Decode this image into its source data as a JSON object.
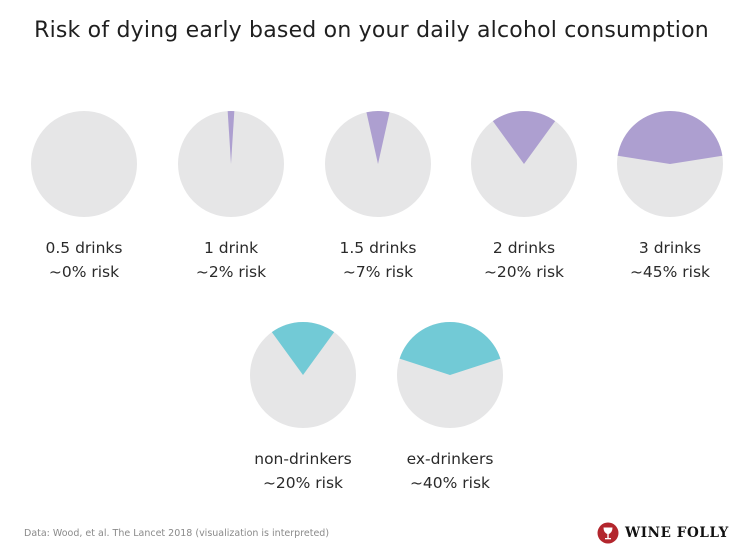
{
  "title": "Risk of dying early based on your daily alcohol consumption",
  "colors": {
    "base": "#e6e6e7",
    "drinkers": "#ad9fd0",
    "non_drinkers": "#72cad6",
    "text": "#2a2a2a"
  },
  "chart_data": {
    "type": "pie",
    "title": "Risk of dying early based on your daily alcohol consumption",
    "items": [
      {
        "label": "0.5 drinks",
        "sublabel": "~0% risk",
        "risk": 0,
        "group": "drinkers"
      },
      {
        "label": "1 drink",
        "sublabel": "~2% risk",
        "risk": 2,
        "group": "drinkers"
      },
      {
        "label": "1.5 drinks",
        "sublabel": "~7% risk",
        "risk": 7,
        "group": "drinkers"
      },
      {
        "label": "2 drinks",
        "sublabel": "~20% risk",
        "risk": 20,
        "group": "drinkers"
      },
      {
        "label": "3 drinks",
        "sublabel": "~45% risk",
        "risk": 45,
        "group": "drinkers"
      },
      {
        "label": "non-drinkers",
        "sublabel": "~20% risk",
        "risk": 20,
        "group": "non_drinkers"
      },
      {
        "label": "ex-drinkers",
        "sublabel": "~40% risk",
        "risk": 40,
        "group": "non_drinkers"
      }
    ]
  },
  "source": "Data: Wood, et al. The Lancet 2018 (visualization is interpreted)",
  "brand": {
    "name": "WINE FOLLY",
    "icon": "wine-folly-logo-icon"
  }
}
